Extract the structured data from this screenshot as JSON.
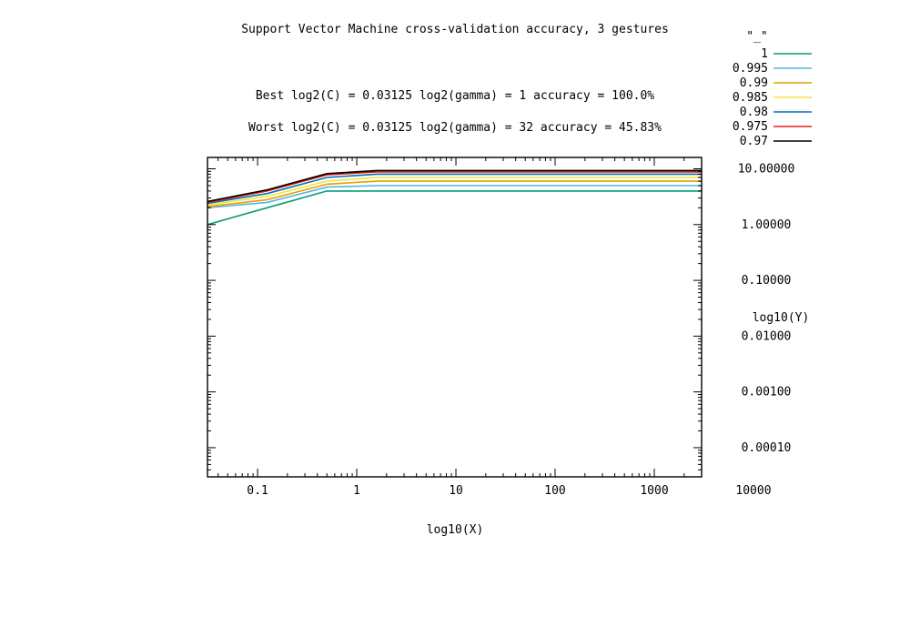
{
  "chart_data": {
    "type": "line",
    "title": "Support Vector Machine cross-validation accuracy, 3 gestures",
    "annotations": [
      "Best log2(C) = 0.03125  log2(gamma) = 1  accuracy = 100.0%",
      "Worst log2(C) = 0.03125  log2(gamma) = 32   accuracy = 45.83%"
    ],
    "xlabel": "log10(X)",
    "ylabel": "log10(Y)",
    "xscale": "log",
    "yscale": "log",
    "xlim": [
      0.03125,
      3000
    ],
    "ylim": [
      3e-05,
      16
    ],
    "y_axis_side": "right",
    "grid": false,
    "legend_position": "top-right",
    "legend_title": "\"_\"",
    "xticks": [
      {
        "value": 0.1,
        "label": "0.1"
      },
      {
        "value": 1,
        "label": "1"
      },
      {
        "value": 10,
        "label": "10"
      },
      {
        "value": 100,
        "label": "100"
      },
      {
        "value": 1000,
        "label": "1000"
      },
      {
        "value": 10000,
        "label": "10000"
      }
    ],
    "yticks": [
      {
        "value": 10,
        "label": "10.00000"
      },
      {
        "value": 1,
        "label": "1.00000"
      },
      {
        "value": 0.1,
        "label": "0.10000"
      },
      {
        "value": 0.01,
        "label": "0.01000"
      },
      {
        "value": 0.001,
        "label": "0.00100"
      },
      {
        "value": 0.0001,
        "label": "0.00010"
      }
    ],
    "series": [
      {
        "name": "1",
        "color": "#009e73",
        "points": [
          [
            0.03125,
            1.0
          ],
          [
            0.125,
            2.0
          ],
          [
            0.5,
            4.0
          ],
          [
            3000,
            4.0
          ]
        ]
      },
      {
        "name": "0.995",
        "color": "#56b4e9",
        "points": [
          [
            0.03125,
            2.0
          ],
          [
            0.125,
            2.5
          ],
          [
            0.5,
            4.7
          ],
          [
            1.6,
            5.0
          ],
          [
            3000,
            5.0
          ]
        ]
      },
      {
        "name": "0.99",
        "color": "#e69f00",
        "points": [
          [
            0.03125,
            2.1
          ],
          [
            0.125,
            2.8
          ],
          [
            0.5,
            5.3
          ],
          [
            1.6,
            6.0
          ],
          [
            3000,
            6.0
          ]
        ]
      },
      {
        "name": "0.985",
        "color": "#f0e442",
        "points": [
          [
            0.03125,
            2.25
          ],
          [
            0.125,
            3.2
          ],
          [
            0.5,
            6.0
          ],
          [
            1.6,
            7.0
          ],
          [
            3000,
            7.0
          ]
        ]
      },
      {
        "name": "0.98",
        "color": "#0072b2",
        "points": [
          [
            0.03125,
            2.4
          ],
          [
            0.125,
            3.6
          ],
          [
            0.5,
            7.0
          ],
          [
            1.6,
            8.0
          ],
          [
            3000,
            8.0
          ]
        ]
      },
      {
        "name": "0.975",
        "color": "#e51e10",
        "points": [
          [
            0.03125,
            2.5
          ],
          [
            0.125,
            4.0
          ],
          [
            0.5,
            7.8
          ],
          [
            1.6,
            8.8
          ],
          [
            3000,
            8.8
          ]
        ]
      },
      {
        "name": "0.97",
        "color": "#000000",
        "points": [
          [
            0.03125,
            2.6
          ],
          [
            0.125,
            4.2
          ],
          [
            0.5,
            8.2
          ],
          [
            1.6,
            9.3
          ],
          [
            3000,
            9.3
          ]
        ]
      }
    ]
  }
}
